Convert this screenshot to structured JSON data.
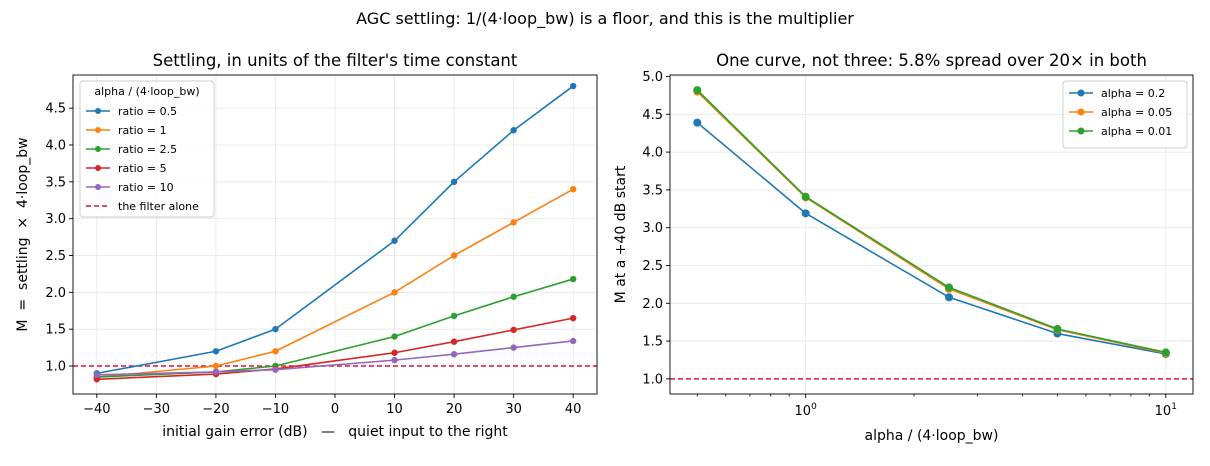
{
  "suptitle": "AGC settling: 1/(4·loop_bw) is a floor, and this is the multiplier",
  "colors": {
    "blue": "#1f77b4",
    "orange": "#ff7f0e",
    "green": "#2ca02c",
    "red": "#d62728",
    "purple": "#9467bd",
    "reference": "#dc143c",
    "grid": "#e6e6e6"
  },
  "chart_data": [
    {
      "type": "line",
      "title": "Settling, in units of the filter's time constant",
      "xlabel": "initial gain error (dB)   —   quiet input to the right",
      "ylabel": "M  =  settling  ×  4·loop_bw",
      "xscale": "linear",
      "xlim": [
        -44,
        44
      ],
      "ylim": [
        0.62,
        4.95
      ],
      "xticks": [
        -40,
        -30,
        -20,
        -10,
        0,
        10,
        20,
        30,
        40
      ],
      "xtick_labels": [
        "−40",
        "−30",
        "−20",
        "−10",
        "0",
        "10",
        "20",
        "30",
        "40"
      ],
      "yticks": [
        1.0,
        1.5,
        2.0,
        2.5,
        3.0,
        3.5,
        4.0,
        4.5
      ],
      "ytick_labels": [
        "1.0",
        "1.5",
        "2.0",
        "2.5",
        "3.0",
        "3.5",
        "4.0",
        "4.5"
      ],
      "grid": true,
      "legend_title": "alpha / (4·loop_bw)",
      "legend_position": "upper left",
      "series": [
        {
          "name": "ratio = 0.5",
          "color": "blue",
          "x": [
            -40,
            -20,
            -10,
            10,
            20,
            30,
            40
          ],
          "y": [
            0.9,
            1.2,
            1.5,
            2.7,
            3.5,
            4.2,
            4.8
          ]
        },
        {
          "name": "ratio = 1",
          "color": "orange",
          "x": [
            -40,
            -20,
            -10,
            10,
            20,
            30,
            40
          ],
          "y": [
            0.85,
            1.0,
            1.2,
            2.0,
            2.5,
            2.95,
            3.4
          ]
        },
        {
          "name": "ratio = 2.5",
          "color": "green",
          "x": [
            -40,
            -20,
            -10,
            10,
            20,
            30,
            40
          ],
          "y": [
            0.85,
            0.92,
            1.0,
            1.4,
            1.68,
            1.94,
            2.18
          ]
        },
        {
          "name": "ratio = 5",
          "color": "red",
          "x": [
            -40,
            -20,
            -10,
            10,
            20,
            30,
            40
          ],
          "y": [
            0.82,
            0.89,
            0.96,
            1.18,
            1.33,
            1.49,
            1.65
          ]
        },
        {
          "name": "ratio = 10",
          "color": "purple",
          "x": [
            -40,
            -20,
            -10,
            10,
            20,
            30,
            40
          ],
          "y": [
            0.88,
            0.92,
            0.95,
            1.08,
            1.16,
            1.25,
            1.34
          ]
        }
      ],
      "reference_line": {
        "name": "the filter alone",
        "y": 1.0,
        "color": "reference"
      }
    },
    {
      "type": "line",
      "title": "One curve, not three: 5.8% spread over 20× in both",
      "xlabel": "alpha / (4·loop_bw)",
      "ylabel": "M at a +40 dB start",
      "xscale": "log",
      "xlim": [
        0.42,
        11.9
      ],
      "ylim": [
        0.8,
        5.02
      ],
      "xticks": [
        1,
        10
      ],
      "xtick_labels": [
        {
          "base": "10",
          "exp": "0"
        },
        {
          "base": "10",
          "exp": "1"
        }
      ],
      "yticks": [
        1.0,
        1.5,
        2.0,
        2.5,
        3.0,
        3.5,
        4.0,
        4.5,
        5.0
      ],
      "ytick_labels": [
        "1.0",
        "1.5",
        "2.0",
        "2.5",
        "3.0",
        "3.5",
        "4.0",
        "4.5",
        "5.0"
      ],
      "grid": true,
      "legend_position": "upper right",
      "series": [
        {
          "name": "alpha = 0.2",
          "color": "blue",
          "x": [
            0.5,
            1,
            2.5,
            5,
            10
          ],
          "y": [
            4.39,
            3.19,
            2.08,
            1.6,
            1.33
          ]
        },
        {
          "name": "alpha = 0.05",
          "color": "orange",
          "x": [
            0.5,
            1,
            2.5,
            5,
            10
          ],
          "y": [
            4.8,
            3.4,
            2.19,
            1.65,
            1.34
          ]
        },
        {
          "name": "alpha = 0.01",
          "color": "green",
          "x": [
            0.5,
            1,
            2.5,
            5,
            10
          ],
          "y": [
            4.82,
            3.41,
            2.21,
            1.66,
            1.35
          ]
        }
      ],
      "reference_line": {
        "y": 1.0,
        "color": "reference"
      }
    }
  ]
}
